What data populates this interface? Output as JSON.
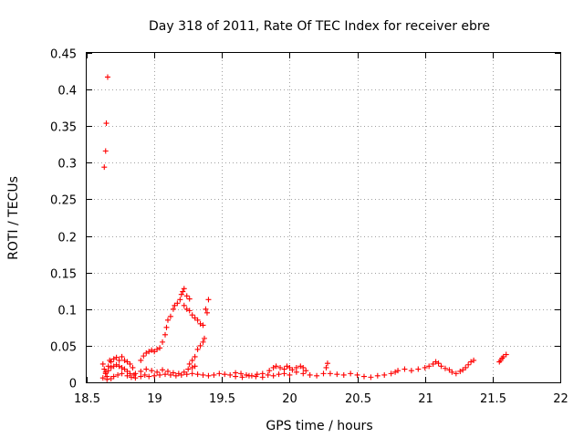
{
  "chart_data": {
    "type": "scatter",
    "title": "Day 318 of 2011, Rate Of TEC Index for receiver ebre",
    "xlabel": "GPS time / hours",
    "ylabel": "ROTI / TECUs",
    "xlim": [
      18.5,
      22
    ],
    "ylim": [
      0,
      0.45
    ],
    "xticks": [
      18.5,
      19,
      19.5,
      20,
      20.5,
      21,
      21.5,
      22
    ],
    "xtick_labels": [
      "18.5",
      "19",
      "19.5",
      "20",
      "20.5",
      "21",
      "21.5",
      "22"
    ],
    "yticks": [
      0,
      0.05,
      0.1,
      0.15,
      0.2,
      0.25,
      0.3,
      0.35,
      0.4,
      0.45
    ],
    "ytick_labels": [
      "0",
      "0.05",
      "0.1",
      "0.15",
      "0.2",
      "0.25",
      "0.3",
      "0.35",
      "0.4",
      "0.45"
    ],
    "grid": true,
    "marker": "+",
    "color": "#ff0000",
    "series": [
      {
        "name": "ROTI",
        "points": [
          [
            18.63,
            0.294
          ],
          [
            18.64,
            0.316
          ],
          [
            18.645,
            0.354
          ],
          [
            18.655,
            0.417
          ],
          [
            18.62,
            0.025
          ],
          [
            18.63,
            0.018
          ],
          [
            18.64,
            0.012
          ],
          [
            18.65,
            0.008
          ],
          [
            18.66,
            0.022
          ],
          [
            18.67,
            0.03
          ],
          [
            18.68,
            0.028
          ],
          [
            18.7,
            0.032
          ],
          [
            18.72,
            0.034
          ],
          [
            18.74,
            0.03
          ],
          [
            18.76,
            0.035
          ],
          [
            18.78,
            0.03
          ],
          [
            18.8,
            0.028
          ],
          [
            18.82,
            0.025
          ],
          [
            18.84,
            0.02
          ],
          [
            18.64,
            0.014
          ],
          [
            18.66,
            0.016
          ],
          [
            18.68,
            0.02
          ],
          [
            18.7,
            0.022
          ],
          [
            18.72,
            0.024
          ],
          [
            18.74,
            0.022
          ],
          [
            18.76,
            0.02
          ],
          [
            18.78,
            0.018
          ],
          [
            18.8,
            0.015
          ],
          [
            18.82,
            0.012
          ],
          [
            18.85,
            0.01
          ],
          [
            18.62,
            0.006
          ],
          [
            18.65,
            0.004
          ],
          [
            18.68,
            0.005
          ],
          [
            18.7,
            0.008
          ],
          [
            18.73,
            0.01
          ],
          [
            18.76,
            0.012
          ],
          [
            18.8,
            0.009
          ],
          [
            18.83,
            0.007
          ],
          [
            18.86,
            0.006
          ],
          [
            18.9,
            0.008
          ],
          [
            18.93,
            0.01
          ],
          [
            18.9,
            0.03
          ],
          [
            18.92,
            0.036
          ],
          [
            18.94,
            0.04
          ],
          [
            18.96,
            0.042
          ],
          [
            18.98,
            0.044
          ],
          [
            19.0,
            0.042
          ],
          [
            19.02,
            0.045
          ],
          [
            19.04,
            0.047
          ],
          [
            19.06,
            0.055
          ],
          [
            19.08,
            0.065
          ],
          [
            19.09,
            0.075
          ],
          [
            19.1,
            0.085
          ],
          [
            19.12,
            0.09
          ],
          [
            19.14,
            0.1
          ],
          [
            19.15,
            0.105
          ],
          [
            19.17,
            0.108
          ],
          [
            19.19,
            0.113
          ],
          [
            19.2,
            0.12
          ],
          [
            19.21,
            0.124
          ],
          [
            19.22,
            0.128
          ],
          [
            19.24,
            0.118
          ],
          [
            19.26,
            0.114
          ],
          [
            19.22,
            0.105
          ],
          [
            19.24,
            0.1
          ],
          [
            19.26,
            0.098
          ],
          [
            19.28,
            0.092
          ],
          [
            19.3,
            0.088
          ],
          [
            19.32,
            0.085
          ],
          [
            19.34,
            0.08
          ],
          [
            19.36,
            0.078
          ],
          [
            19.38,
            0.1
          ],
          [
            19.4,
            0.113
          ],
          [
            19.39,
            0.095
          ],
          [
            19.26,
            0.025
          ],
          [
            19.28,
            0.03
          ],
          [
            19.3,
            0.035
          ],
          [
            19.32,
            0.045
          ],
          [
            19.34,
            0.05
          ],
          [
            19.36,
            0.055
          ],
          [
            19.37,
            0.06
          ],
          [
            18.86,
            0.012
          ],
          [
            18.9,
            0.015
          ],
          [
            18.94,
            0.018
          ],
          [
            18.98,
            0.016
          ],
          [
            19.02,
            0.014
          ],
          [
            19.06,
            0.017
          ],
          [
            19.1,
            0.015
          ],
          [
            19.14,
            0.013
          ],
          [
            19.18,
            0.012
          ],
          [
            19.22,
            0.014
          ],
          [
            19.25,
            0.018
          ],
          [
            19.28,
            0.02
          ],
          [
            19.3,
            0.022
          ],
          [
            18.96,
            0.008
          ],
          [
            19.0,
            0.009
          ],
          [
            19.04,
            0.01
          ],
          [
            19.08,
            0.011
          ],
          [
            19.12,
            0.01
          ],
          [
            19.16,
            0.009
          ],
          [
            19.2,
            0.01
          ],
          [
            19.24,
            0.011
          ],
          [
            19.28,
            0.012
          ],
          [
            19.32,
            0.011
          ],
          [
            19.36,
            0.01
          ],
          [
            19.4,
            0.009
          ],
          [
            19.44,
            0.01
          ],
          [
            19.48,
            0.012
          ],
          [
            19.52,
            0.011
          ],
          [
            19.56,
            0.01
          ],
          [
            19.6,
            0.013
          ],
          [
            19.64,
            0.012
          ],
          [
            19.68,
            0.01
          ],
          [
            19.72,
            0.009
          ],
          [
            19.76,
            0.011
          ],
          [
            19.8,
            0.012
          ],
          [
            19.84,
            0.01
          ],
          [
            19.88,
            0.009
          ],
          [
            19.92,
            0.011
          ],
          [
            19.96,
            0.012
          ],
          [
            20.0,
            0.01
          ],
          [
            19.6,
            0.008
          ],
          [
            19.65,
            0.007
          ],
          [
            19.7,
            0.009
          ],
          [
            19.75,
            0.008
          ],
          [
            19.8,
            0.007
          ],
          [
            19.85,
            0.016
          ],
          [
            19.88,
            0.02
          ],
          [
            19.9,
            0.022
          ],
          [
            19.93,
            0.02
          ],
          [
            19.96,
            0.018
          ],
          [
            19.98,
            0.022
          ],
          [
            20.0,
            0.02
          ],
          [
            20.02,
            0.017
          ],
          [
            20.05,
            0.02
          ],
          [
            20.08,
            0.022
          ],
          [
            20.1,
            0.02
          ],
          [
            20.12,
            0.016
          ],
          [
            20.05,
            0.014
          ],
          [
            20.1,
            0.012
          ],
          [
            20.15,
            0.01
          ],
          [
            20.2,
            0.009
          ],
          [
            20.25,
            0.012
          ],
          [
            20.27,
            0.02
          ],
          [
            20.28,
            0.026
          ],
          [
            20.3,
            0.012
          ],
          [
            20.35,
            0.011
          ],
          [
            20.4,
            0.01
          ],
          [
            20.45,
            0.012
          ],
          [
            20.5,
            0.01
          ],
          [
            20.55,
            0.008
          ],
          [
            20.6,
            0.007
          ],
          [
            20.65,
            0.009
          ],
          [
            20.7,
            0.01
          ],
          [
            20.75,
            0.012
          ],
          [
            20.78,
            0.014
          ],
          [
            20.8,
            0.016
          ],
          [
            20.85,
            0.018
          ],
          [
            20.9,
            0.016
          ],
          [
            20.95,
            0.018
          ],
          [
            21.0,
            0.02
          ],
          [
            21.03,
            0.022
          ],
          [
            21.06,
            0.025
          ],
          [
            21.08,
            0.028
          ],
          [
            21.1,
            0.026
          ],
          [
            21.12,
            0.022
          ],
          [
            21.15,
            0.019
          ],
          [
            21.18,
            0.017
          ],
          [
            21.2,
            0.014
          ],
          [
            21.23,
            0.012
          ],
          [
            21.26,
            0.015
          ],
          [
            21.28,
            0.017
          ],
          [
            21.3,
            0.02
          ],
          [
            21.32,
            0.024
          ],
          [
            21.34,
            0.028
          ],
          [
            21.36,
            0.03
          ],
          [
            21.55,
            0.028
          ],
          [
            21.56,
            0.03
          ],
          [
            21.57,
            0.033
          ],
          [
            21.58,
            0.035
          ],
          [
            21.6,
            0.038
          ]
        ]
      }
    ]
  }
}
